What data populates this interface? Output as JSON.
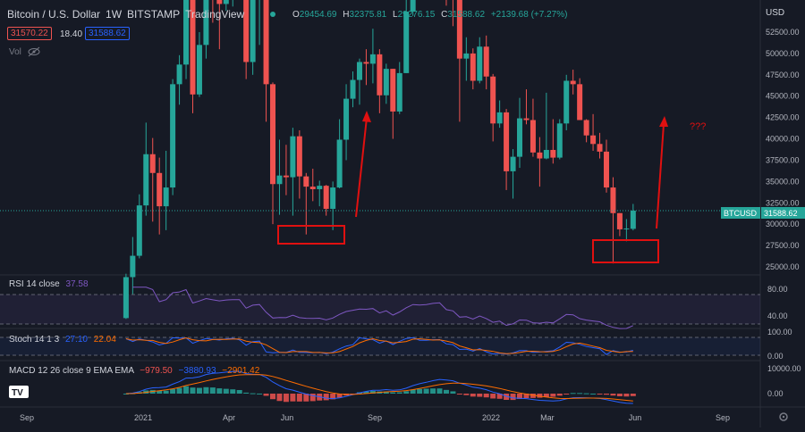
{
  "header": {
    "symbol": "Bitcoin / U.S. Dollar",
    "interval": "1W",
    "exchange": "BITSTAMP",
    "platform": "TradingView",
    "ohlc": {
      "o_label": "O",
      "o": "29454.69",
      "h_label": "H",
      "h": "32375.81",
      "l_label": "L",
      "l": "29276.15",
      "c_label": "C",
      "c": "31588.62",
      "change": "+2139.68 (+7.27%)"
    },
    "bid": "31570.22",
    "spread": "18.40",
    "ask": "31588.62",
    "vol_label": "Vol"
  },
  "currency": "USD",
  "price_axis": [
    "52500.00",
    "50000.00",
    "47500.00",
    "45000.00",
    "42500.00",
    "40000.00",
    "37500.00",
    "35000.00",
    "32500.00",
    "30000.00",
    "27500.00",
    "25000.00"
  ],
  "last_price": {
    "symbol": "BTCUSD",
    "value": "31588.62"
  },
  "annotation": {
    "text": "???"
  },
  "rsi": {
    "label": "RSI 14 close",
    "value": "37.58",
    "axis": [
      "80.00",
      "40.00"
    ]
  },
  "stoch": {
    "label": "Stoch 14 1 3",
    "k": "27.10",
    "d": "22.04",
    "axis": [
      "100.00",
      "0.00"
    ]
  },
  "macd": {
    "label": "MACD 12 26 close 9 EMA EMA",
    "hist": "−979.50",
    "macd": "−3880.93",
    "signal": "−2901.42",
    "axis": [
      "10000.00",
      "0.00"
    ]
  },
  "time_axis": [
    "Sep",
    "2021",
    "Apr",
    "Jun",
    "Sep",
    "2022",
    "Mar",
    "Jun",
    "Sep"
  ],
  "colors": {
    "up": "#26a69a",
    "down": "#ef5350",
    "rsi": "#7e57c2",
    "stoch_k": "#2962ff",
    "stoch_d": "#ff6d00",
    "annotation": "#e01010"
  },
  "chart_data": {
    "type": "candlestick",
    "title": "Bitcoin / U.S. Dollar, 1W, BITSTAMP",
    "x": [
      "2020-12-14",
      "2020-12-21",
      "2020-12-28",
      "2021-01-04",
      "2021-01-11",
      "2021-01-18",
      "2021-01-25",
      "2021-02-01",
      "2021-02-08",
      "2021-02-15",
      "2021-02-22",
      "2021-03-01",
      "2021-03-08",
      "2021-03-15",
      "2021-03-22",
      "2021-03-29",
      "2021-04-05",
      "2021-04-12",
      "2021-04-19",
      "2021-04-26",
      "2021-05-03",
      "2021-05-10",
      "2021-05-17",
      "2021-05-24",
      "2021-05-31",
      "2021-06-07",
      "2021-06-14",
      "2021-06-21",
      "2021-06-28",
      "2021-07-05",
      "2021-07-12",
      "2021-07-19",
      "2021-07-26",
      "2021-08-02",
      "2021-08-09",
      "2021-08-16",
      "2021-08-23",
      "2021-08-30",
      "2021-09-06",
      "2021-09-13",
      "2021-09-20",
      "2021-09-27",
      "2021-10-04",
      "2021-10-11",
      "2021-10-18",
      "2021-10-25",
      "2021-11-01",
      "2021-11-08",
      "2021-11-15",
      "2021-11-22",
      "2021-11-29",
      "2021-12-06",
      "2021-12-13",
      "2021-12-20",
      "2021-12-27",
      "2022-01-03",
      "2022-01-10",
      "2022-01-17",
      "2022-01-24",
      "2022-01-31",
      "2022-02-07",
      "2022-02-14",
      "2022-02-21",
      "2022-02-28",
      "2022-03-07",
      "2022-03-14",
      "2022-03-21",
      "2022-03-28",
      "2022-04-04",
      "2022-04-11",
      "2022-04-18",
      "2022-04-25",
      "2022-05-02",
      "2022-05-09",
      "2022-05-16",
      "2022-05-23",
      "2022-05-30"
    ],
    "ohlc": [
      [
        19000,
        24200,
        18900,
        23800
      ],
      [
        23800,
        28500,
        21800,
        26300
      ],
      [
        26300,
        33500,
        26000,
        32200
      ],
      [
        32200,
        41900,
        31000,
        38200
      ],
      [
        38200,
        40100,
        30300,
        36000
      ],
      [
        36000,
        37800,
        28800,
        32100
      ],
      [
        32100,
        38600,
        29300,
        34300
      ],
      [
        34300,
        47000,
        33400,
        46400
      ],
      [
        46400,
        49800,
        44000,
        48700
      ],
      [
        48700,
        58300,
        47000,
        57400
      ],
      [
        57400,
        57500,
        43000,
        45200
      ],
      [
        45200,
        52500,
        44900,
        51000
      ],
      [
        51000,
        61800,
        49400,
        59000
      ],
      [
        59000,
        61200,
        53600,
        57400
      ],
      [
        57400,
        59700,
        50500,
        55800
      ],
      [
        55800,
        60500,
        55000,
        58900
      ],
      [
        58900,
        61300,
        55500,
        60100
      ],
      [
        60100,
        64900,
        59400,
        60100
      ],
      [
        60100,
        60300,
        47000,
        49000
      ],
      [
        49000,
        58100,
        47500,
        56600
      ],
      [
        56600,
        59600,
        51000,
        58300
      ],
      [
        58300,
        59500,
        42000,
        46400
      ],
      [
        46400,
        46600,
        30000,
        34700
      ],
      [
        34700,
        39900,
        31100,
        35700
      ],
      [
        35700,
        39300,
        33400,
        35500
      ],
      [
        35500,
        41300,
        31000,
        40300
      ],
      [
        40300,
        41000,
        33000,
        35600
      ],
      [
        35600,
        36000,
        28800,
        34400
      ],
      [
        34400,
        36500,
        32700,
        34100
      ],
      [
        34100,
        35100,
        32100,
        34500
      ],
      [
        34500,
        34600,
        31000,
        31800
      ],
      [
        31800,
        35000,
        29300,
        34300
      ],
      [
        34300,
        42300,
        34200,
        39900
      ],
      [
        39900,
        46400,
        37500,
        44700
      ],
      [
        44700,
        47900,
        43700,
        46900
      ],
      [
        46900,
        49400,
        44000,
        49000
      ],
      [
        49000,
        50500,
        46300,
        48800
      ],
      [
        48800,
        52900,
        46500,
        49900
      ],
      [
        49900,
        50500,
        43000,
        45100
      ],
      [
        45100,
        48800,
        44100,
        48200
      ],
      [
        48200,
        48200,
        40000,
        43200
      ],
      [
        43200,
        49000,
        42900,
        47700
      ],
      [
        47700,
        56600,
        47700,
        54900
      ],
      [
        54900,
        62000,
        54400,
        61500
      ],
      [
        61500,
        67000,
        59500,
        60900
      ],
      [
        60900,
        62200,
        57000,
        61800
      ],
      [
        61800,
        68500,
        60700,
        64400
      ],
      [
        64400,
        69000,
        62400,
        65400
      ],
      [
        65400,
        66300,
        55600,
        58600
      ],
      [
        58600,
        59300,
        53200,
        57200
      ],
      [
        57200,
        59100,
        42000,
        49400
      ],
      [
        49400,
        51900,
        46800,
        50000
      ],
      [
        50000,
        50600,
        45800,
        46800
      ],
      [
        46800,
        51900,
        46500,
        50800
      ],
      [
        50800,
        52100,
        45800,
        47300
      ],
      [
        47300,
        47600,
        39700,
        41800
      ],
      [
        41800,
        44500,
        41300,
        43100
      ],
      [
        43100,
        43500,
        34000,
        36200
      ],
      [
        36200,
        38800,
        33000,
        37900
      ],
      [
        37900,
        44800,
        36600,
        42400
      ],
      [
        42400,
        45800,
        41700,
        42200
      ],
      [
        42200,
        44700,
        37900,
        38400
      ],
      [
        38400,
        40200,
        34400,
        37700
      ],
      [
        37700,
        45400,
        37600,
        38700
      ],
      [
        38700,
        42300,
        37100,
        37800
      ],
      [
        37800,
        42300,
        37600,
        41800
      ],
      [
        41800,
        47500,
        41000,
        46800
      ],
      [
        46800,
        48100,
        45200,
        46400
      ],
      [
        46400,
        47100,
        42700,
        42200
      ],
      [
        42200,
        42300,
        39600,
        40400
      ],
      [
        40400,
        42900,
        38600,
        39400
      ],
      [
        39400,
        40700,
        37700,
        38500
      ],
      [
        38500,
        39900,
        33700,
        34300
      ],
      [
        34300,
        35500,
        25400,
        31300
      ],
      [
        31300,
        31300,
        28600,
        29400
      ],
      [
        29400,
        30600,
        28000,
        29500
      ],
      [
        29454.69,
        32375.81,
        29276.15,
        31588.62
      ]
    ]
  }
}
